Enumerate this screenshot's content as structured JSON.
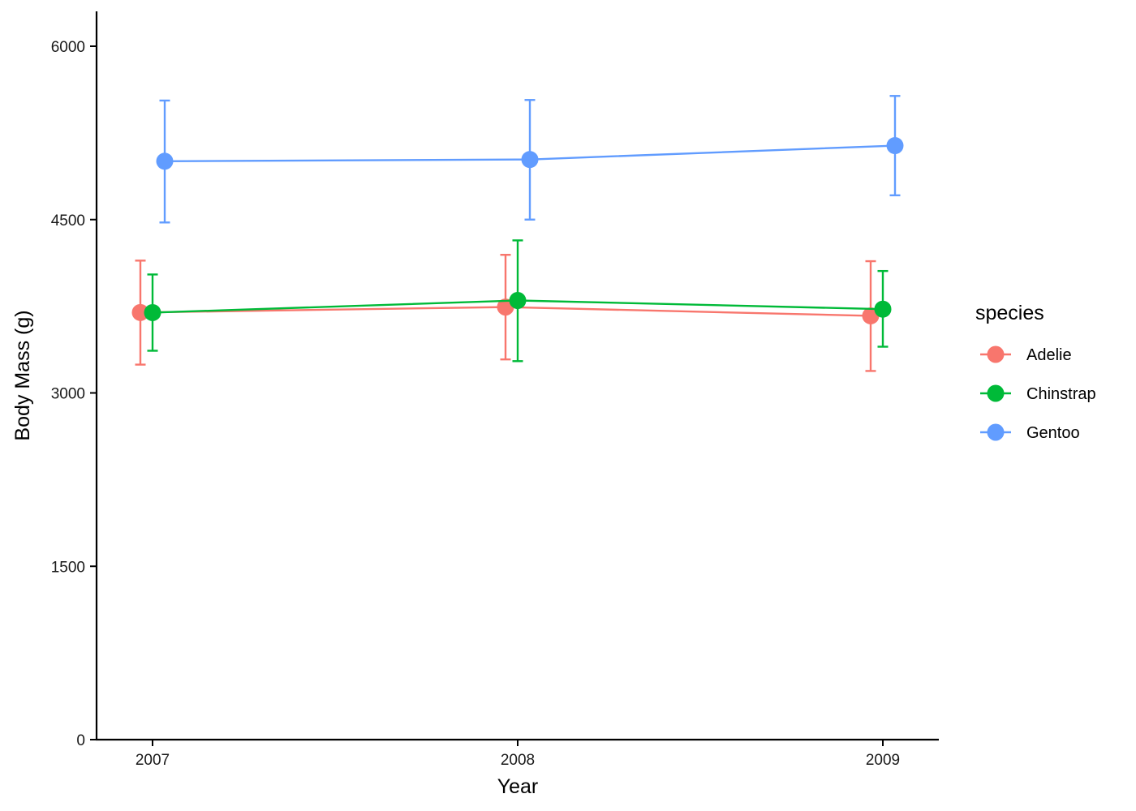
{
  "chart_data": {
    "type": "line",
    "title": "",
    "xlabel": "Year",
    "ylabel": "Body Mass (g)",
    "x": [
      2007,
      2008,
      2009
    ],
    "x_tick_labels": [
      "2007",
      "2008",
      "2009"
    ],
    "ylim": [
      0,
      6300
    ],
    "y_ticks": [
      0,
      1500,
      3000,
      4500,
      6000
    ],
    "y_tick_labels": [
      "0",
      "1500",
      "3000",
      "4500",
      "6000"
    ],
    "grid": false,
    "legend": {
      "title": "species",
      "position": "right"
    },
    "error_bars": true,
    "series": [
      {
        "name": "Adelie",
        "color": "#F8766D",
        "values": [
          3696,
          3743,
          3667
        ],
        "lower": [
          3245,
          3290,
          3190
        ],
        "upper": [
          4145,
          4195,
          4140
        ]
      },
      {
        "name": "Chinstrap",
        "color": "#00BA38",
        "values": [
          3695,
          3800,
          3725
        ],
        "lower": [
          3365,
          3275,
          3400
        ],
        "upper": [
          4025,
          4320,
          4055
        ]
      },
      {
        "name": "Gentoo",
        "color": "#619CFF",
        "values": [
          5005,
          5020,
          5140
        ],
        "lower": [
          4475,
          4500,
          4710
        ],
        "upper": [
          5530,
          5535,
          5570
        ]
      }
    ]
  }
}
